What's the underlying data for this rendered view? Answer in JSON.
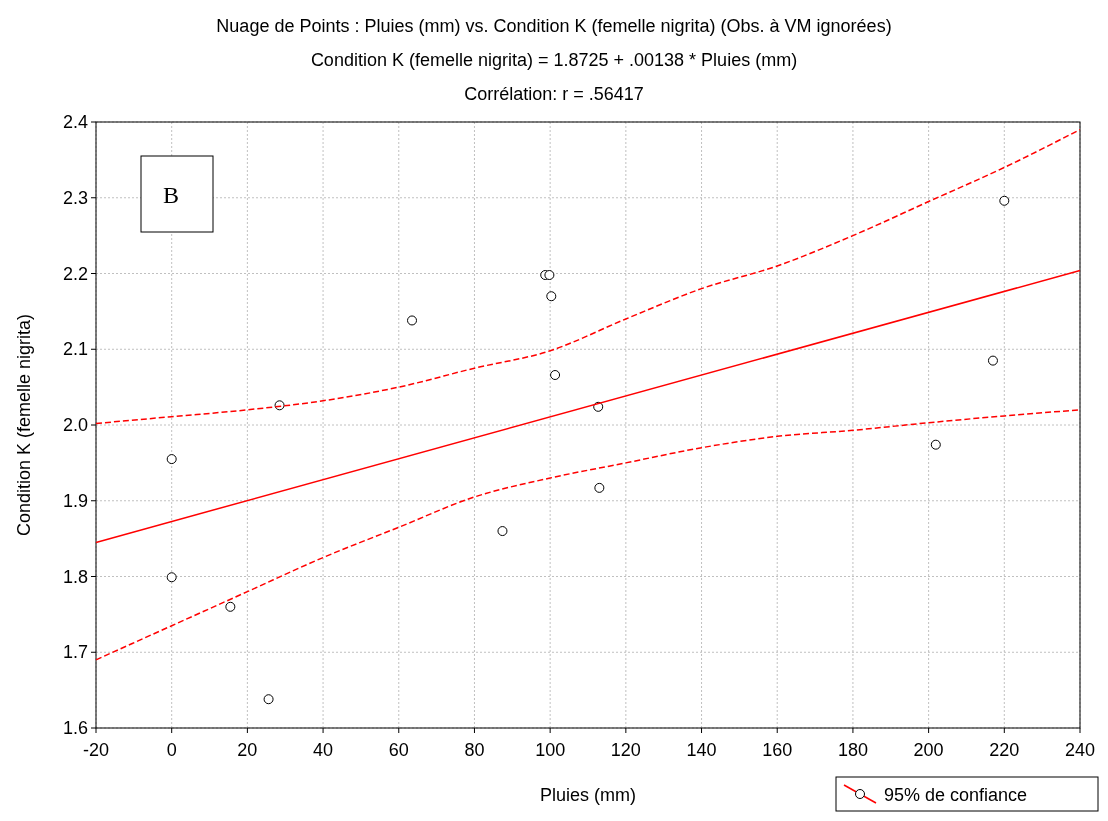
{
  "chart_data": {
    "type": "scatter",
    "title": "Nuage de Points : Pluies (mm) vs. Condition K (femelle nigrita) (Obs. à VM ignorées)",
    "subtitle": "Condition K (femelle nigrita) = 1.8725 + .00138 * Pluies (mm)",
    "xlabel": "Pluies (mm)",
    "ylabel": "Condition K (femelle nigrita)",
    "annotations": [
      "Corrélation: r = .56417",
      "B"
    ],
    "xlim": [
      -20,
      240
    ],
    "xticks": [
      -20,
      0,
      20,
      40,
      60,
      80,
      100,
      120,
      140,
      160,
      180,
      200,
      220,
      240
    ],
    "ylim": [
      1.6,
      2.4
    ],
    "yticks": [
      1.6,
      1.7,
      1.8,
      1.9,
      {
        "value": 2.0,
        "label": "2.0"
      },
      2.1,
      2.2,
      2.3,
      2.4
    ],
    "grid": true,
    "legend": "bottom right",
    "series": [
      {
        "color": "#000000",
        "marker": "circle",
        "x": [
          0,
          0,
          15.5,
          25.6,
          28.5,
          63.5,
          87.4,
          98.7,
          99.8,
          100.3,
          101.3,
          112.7,
          113,
          201.9,
          217,
          220
        ],
        "values": [
          1.955,
          1.799,
          1.76,
          1.638,
          2.026,
          2.138,
          1.86,
          2.198,
          2.198,
          2.17,
          2.066,
          2.024,
          1.917,
          1.974,
          2.085,
          2.296
        ]
      },
      {
        "type": "line",
        "color": "#ff0000",
        "line_style": "solid",
        "x": [
          -20,
          240
        ],
        "values": [
          1.845,
          2.204
        ]
      },
      {
        "type": "line",
        "name": "95% de confiance",
        "color": "#ff0000",
        "line_style": "dashed",
        "x": [
          -20,
          0,
          20,
          40,
          60,
          80,
          100,
          120,
          140,
          160,
          180,
          200,
          220,
          240
        ],
        "values": [
          2.002,
          2.011,
          2.02,
          2.032,
          2.05,
          2.075,
          2.098,
          2.14,
          2.18,
          2.21,
          2.25,
          2.295,
          2.34,
          2.39
        ]
      },
      {
        "type": "line",
        "color": "#ff0000",
        "line_style": "dashed",
        "x": [
          -20,
          0,
          20,
          40,
          60,
          80,
          100,
          120,
          140,
          160,
          180,
          200,
          220,
          240
        ],
        "values": [
          1.69,
          1.735,
          1.78,
          1.825,
          1.865,
          1.905,
          1.93,
          1.95,
          1.97,
          1.985,
          1.993,
          2.003,
          2.012,
          2.02
        ]
      }
    ]
  }
}
